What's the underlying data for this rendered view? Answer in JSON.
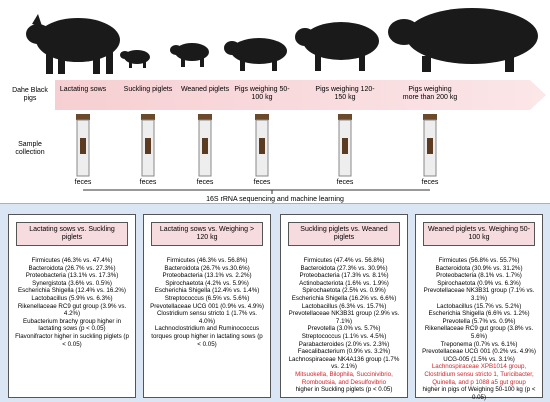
{
  "stages_label": "Dahe Black pigs",
  "stages": [
    "Lactating sows",
    "Suckling piglets",
    "Weaned piglets",
    "Pigs weighing 50-100 kg",
    "Pigs weighing 120-150 kg",
    "Pigs weighing more than 200 kg"
  ],
  "sample_label": "Sample collection",
  "sample_type": "feces",
  "method": "16S rRNA sequencing and machine learning",
  "boxes": [
    {
      "title": "Lactating sows vs. Suckling piglets",
      "items": [
        {
          "text": "Firmicutes (46.3% vs. 47.4%)"
        },
        {
          "text": "Bacteroidota (26.7% vs. 27.3%)"
        },
        {
          "text": "Proteobacteria (13.1% vs. 17.3%)"
        },
        {
          "text": "Synergistota (3.6% vs. 0.5%)"
        },
        {
          "text": "Escherichia Shigella (12.4% vs. 16.2%)"
        },
        {
          "text": "Lactobacillus (5.9% vs. 6.3%)"
        },
        {
          "text": "Rikenellaceae RC9 gut group (3.9% vs. 4.2%)"
        },
        {
          "text": "Eubacterium brachy group higher in lactating sows (p < 0.05)"
        },
        {
          "text": "Flavonifractor higher in suckling piglets (p < 0.05)"
        }
      ]
    },
    {
      "title": "Lactating sows vs. Weighing > 120 kg",
      "items": [
        {
          "text": "Firmicutes (46.3% vs. 56.8%)"
        },
        {
          "text": "Bacteroidota (26.7% vs.30.6%)"
        },
        {
          "text": "Proteobacteria (13.1% vs. 2.2%)"
        },
        {
          "text": "Spirochaetota (4.2% vs. 5.9%)"
        },
        {
          "text": "Escherichia Shigella (12.4% vs. 1.4%)"
        },
        {
          "text": "Streptococcus (6.5% vs. 5.6%)"
        },
        {
          "text": "Prevotellaceae UCG 001 (0.9% vs. 4.9%)"
        },
        {
          "text": "Clostridium sensu stricto 1 (1.7% vs. 4.0%)"
        },
        {
          "text": "Lachnoclostridium and Ruminococcus torques group higher in lactating sows (p < 0.05)"
        }
      ]
    },
    {
      "title": "Suckling piglets vs. Weaned piglets",
      "items": [
        {
          "text": "Firmicutes (47.4% vs. 56.8%)"
        },
        {
          "text": "Bacteroidota (27.3% vs. 30.9%)"
        },
        {
          "text": "Proteobacteria (17.3% vs. 8.1%)"
        },
        {
          "text": "Actinobacteriota (1.6% vs. 1.9%)"
        },
        {
          "text": "Spirochaetota (2.5% vs. 0.9%)"
        },
        {
          "text": "Escherichia Shigella (16.2% vs. 6.6%)"
        },
        {
          "text": "Lactobacillus (6.3% vs. 15.7%)"
        },
        {
          "text": "Prevotellaceae NK3B31 group (2.9% vs. 7.1%)"
        },
        {
          "text": "Prevotella (3.0% vs. 5.7%)"
        },
        {
          "text": "Streptococcus (1.1% vs. 4.5%)"
        },
        {
          "text": "Parabacteroides (2.0% vs. 2.3%)"
        },
        {
          "text": "Faecalibacterium (0.9% vs. 3.2%)"
        },
        {
          "text": "Lachnospiraceae NK4A136 group (1.7% vs. 2.1%)"
        },
        {
          "text": "Mitsuokella, Bilophila, Succinivibrio, Romboutsia, and Desulfovibrio",
          "red": true
        },
        {
          "text": "higher in Suckling piglets (p < 0.05)"
        }
      ]
    },
    {
      "title": "Weaned piglets vs. Weighing 50-100 kg",
      "items": [
        {
          "text": "Firmicutes (56.8% vs. 55.7%)"
        },
        {
          "text": "Bacteroidota (30.9% vs. 31.2%)"
        },
        {
          "text": "Proteobacteria (8.1% vs. 1.7%)"
        },
        {
          "text": "Spirochaetota (0.9% vs. 6.3%)"
        },
        {
          "text": "Prevotellaceae NK3B31 group (7.1% vs. 3.1%)"
        },
        {
          "text": "Lactobacillus (15.7% vs. 5.2%)"
        },
        {
          "text": "Escherichia Shigella (6.6% vs. 1.2%)"
        },
        {
          "text": "Prevotella (5.7% vs. 0.9%)"
        },
        {
          "text": "Rikenellaceae RC9 gut group (3.8% vs. 5.6%)"
        },
        {
          "text": "Treponema (0.7% vs. 6.1%)"
        },
        {
          "text": "Prevotellaceae UCG 001 (0.2% vs. 4.9%)"
        },
        {
          "text": "UCG-005 (1.5% vs. 3.1%)"
        },
        {
          "text": "Lachnospiraceae XPB1014 group, Clostridium sensu stricto 1, Turicibacter, Quinella, and p 1088 a5 gut group",
          "red": true
        },
        {
          "text": "higher in pigs of Weighing 50-100 kg (p < 0.05)"
        }
      ]
    }
  ]
}
